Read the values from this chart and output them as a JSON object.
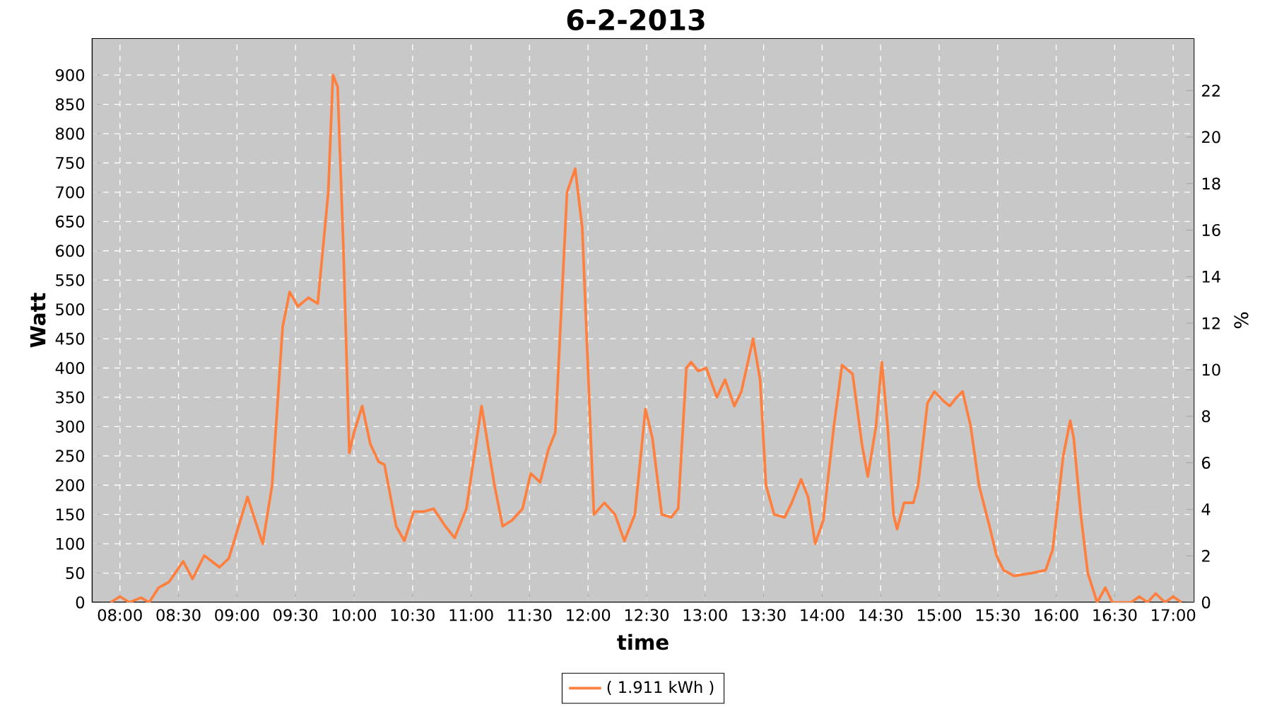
{
  "chart_data": {
    "type": "line",
    "title": "6-2-2013",
    "xlabel": "time",
    "ylabel": "Watt",
    "y2label": "%",
    "xlim": [
      7.76,
      17.18
    ],
    "xticks": [
      {
        "value": 8,
        "label": "08:00"
      },
      {
        "value": 8.5,
        "label": "08:30"
      },
      {
        "value": 9,
        "label": "09:00"
      },
      {
        "value": 9.5,
        "label": "09:30"
      },
      {
        "value": 10,
        "label": "10:00"
      },
      {
        "value": 10.5,
        "label": "10:30"
      },
      {
        "value": 11,
        "label": "11:00"
      },
      {
        "value": 11.5,
        "label": "11:30"
      },
      {
        "value": 12,
        "label": "12:00"
      },
      {
        "value": 12.5,
        "label": "12:30"
      },
      {
        "value": 13,
        "label": "13:00"
      },
      {
        "value": 13.5,
        "label": "13:30"
      },
      {
        "value": 14,
        "label": "14:00"
      },
      {
        "value": 14.5,
        "label": "14:30"
      },
      {
        "value": 15,
        "label": "15:00"
      },
      {
        "value": 15.5,
        "label": "15:30"
      },
      {
        "value": 16,
        "label": "16:00"
      },
      {
        "value": 16.5,
        "label": "16:30"
      },
      {
        "value": 17,
        "label": "17:00"
      }
    ],
    "ylim": [
      0,
      963
    ],
    "yticks": [
      0,
      50,
      100,
      150,
      200,
      250,
      300,
      350,
      400,
      450,
      500,
      550,
      600,
      650,
      700,
      750,
      800,
      850,
      900
    ],
    "y2lim": [
      0,
      24.25
    ],
    "y2ticks": [
      0,
      2,
      4,
      6,
      8,
      10,
      12,
      14,
      16,
      18,
      20,
      22
    ],
    "grid": true,
    "legend": "bottom",
    "marker": "none",
    "line_style": "solid",
    "series": [
      {
        "name": "( 1.911 kWh )",
        "color": "#ff7f3f",
        "x": [
          7.92,
          8.0,
          8.08,
          8.18,
          8.25,
          8.33,
          8.42,
          8.54,
          8.62,
          8.72,
          8.85,
          8.93,
          9.09,
          9.22,
          9.3,
          9.39,
          9.45,
          9.52,
          9.61,
          9.69,
          9.78,
          9.82,
          9.86,
          9.91,
          9.96,
          10.0,
          10.07,
          10.14,
          10.21,
          10.26,
          10.36,
          10.43,
          10.51,
          10.6,
          10.68,
          10.78,
          10.86,
          10.96,
          11.09,
          11.2,
          11.27,
          11.35,
          11.44,
          11.51,
          11.59,
          11.66,
          11.72,
          11.82,
          11.89,
          11.95,
          12.05,
          12.14,
          12.23,
          12.31,
          12.4,
          12.49,
          12.55,
          12.63,
          12.71,
          12.77,
          12.84,
          12.88,
          12.94,
          13.01,
          13.1,
          13.17,
          13.25,
          13.31,
          13.41,
          13.47,
          13.52,
          13.59,
          13.68,
          13.74,
          13.82,
          13.88,
          13.94,
          14.01,
          14.1,
          14.17,
          14.26,
          14.34,
          14.39,
          14.46,
          14.51,
          14.56,
          14.61,
          14.64,
          14.7,
          14.78,
          14.82,
          14.9,
          14.96,
          15.03,
          15.09,
          15.15,
          15.2,
          15.27,
          15.34,
          15.43,
          15.49,
          15.55,
          15.64,
          15.79,
          15.91,
          15.97,
          16.06,
          16.12,
          16.15,
          16.21,
          16.27,
          16.35,
          16.42,
          16.48,
          16.64,
          16.71,
          16.78,
          16.85,
          16.93,
          17.0,
          17.07
        ],
        "values": [
          0,
          10,
          0,
          8,
          0,
          25,
          35,
          70,
          40,
          80,
          60,
          75,
          180,
          100,
          200,
          470,
          530,
          505,
          520,
          510,
          700,
          900,
          880,
          600,
          255,
          290,
          335,
          270,
          240,
          235,
          130,
          105,
          155,
          155,
          160,
          130,
          110,
          160,
          335,
          200,
          130,
          140,
          160,
          220,
          205,
          260,
          290,
          700,
          740,
          640,
          150,
          170,
          150,
          105,
          150,
          330,
          280,
          150,
          145,
          160,
          400,
          410,
          395,
          400,
          350,
          380,
          335,
          360,
          450,
          380,
          200,
          150,
          145,
          170,
          210,
          180,
          100,
          140,
          300,
          405,
          390,
          270,
          215,
          300,
          410,
          300,
          150,
          125,
          170,
          170,
          200,
          340,
          360,
          345,
          335,
          350,
          360,
          300,
          200,
          130,
          80,
          55,
          45,
          50,
          55,
          90,
          250,
          310,
          280,
          150,
          50,
          0,
          25,
          0,
          0,
          10,
          0,
          15,
          0,
          10,
          0
        ]
      }
    ]
  }
}
